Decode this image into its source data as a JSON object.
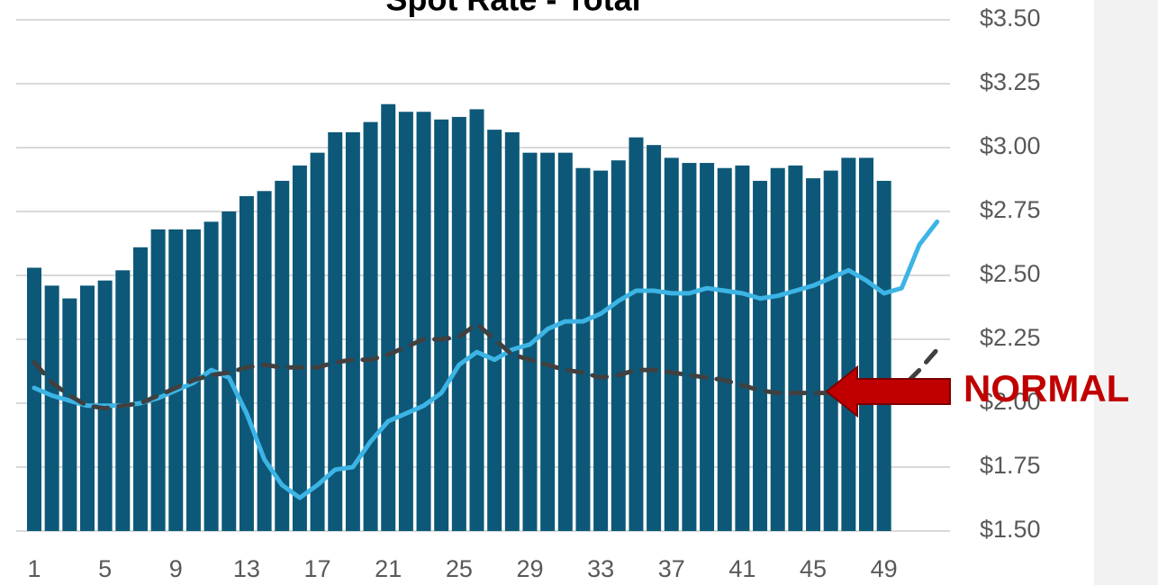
{
  "chart_data": {
    "type": "bar",
    "title": "Spot Rate - Total",
    "annotation": "NORMAL",
    "categories": [
      "1",
      null,
      null,
      null,
      "5",
      null,
      null,
      null,
      "9",
      null,
      null,
      null,
      "13",
      null,
      null,
      null,
      "17",
      null,
      null,
      null,
      "21",
      null,
      null,
      null,
      "25",
      null,
      null,
      null,
      "29",
      null,
      null,
      null,
      "33",
      null,
      null,
      null,
      "37",
      null,
      null,
      null,
      "41",
      null,
      null,
      null,
      "45",
      null,
      null,
      null,
      "49",
      null,
      null,
      null
    ],
    "series": [
      {
        "type": "bar",
        "color": "#0d5878",
        "values": [
          2.53,
          2.46,
          2.41,
          2.46,
          2.48,
          2.52,
          2.61,
          2.68,
          2.68,
          2.68,
          2.71,
          2.75,
          2.81,
          2.83,
          2.87,
          2.93,
          2.98,
          3.06,
          3.06,
          3.1,
          3.17,
          3.14,
          3.14,
          3.11,
          3.12,
          3.15,
          3.07,
          3.06,
          2.98,
          2.98,
          2.98,
          2.92,
          2.91,
          2.95,
          3.04,
          3.01,
          2.96,
          2.94,
          2.94,
          2.92,
          2.93,
          2.87,
          2.92,
          2.93,
          2.88,
          2.91,
          2.96,
          2.96,
          2.87,
          null,
          null,
          null
        ]
      },
      {
        "type": "line",
        "color": "#3cb4e5",
        "dashed": false,
        "values": [
          2.06,
          2.03,
          2.01,
          1.99,
          1.99,
          1.99,
          2.0,
          2.02,
          2.05,
          2.08,
          2.13,
          2.1,
          1.96,
          1.78,
          1.68,
          1.63,
          1.68,
          1.74,
          1.75,
          1.85,
          1.93,
          1.96,
          1.99,
          2.04,
          2.15,
          2.2,
          2.17,
          2.21,
          2.23,
          2.29,
          2.32,
          2.32,
          2.35,
          2.4,
          2.44,
          2.44,
          2.43,
          2.43,
          2.45,
          2.44,
          2.43,
          2.41,
          2.42,
          2.44,
          2.46,
          2.49,
          2.52,
          2.48,
          2.43,
          2.45,
          2.62,
          2.71
        ]
      },
      {
        "type": "line",
        "color": "#404040",
        "dashed": true,
        "values": [
          2.16,
          2.08,
          2.03,
          1.99,
          1.98,
          1.99,
          2.0,
          2.03,
          2.06,
          2.09,
          2.11,
          2.12,
          2.14,
          2.15,
          2.14,
          2.14,
          2.14,
          2.16,
          2.17,
          2.17,
          2.19,
          2.22,
          2.25,
          2.25,
          2.26,
          2.31,
          2.25,
          2.19,
          2.17,
          2.15,
          2.13,
          2.12,
          2.1,
          2.11,
          2.13,
          2.13,
          2.12,
          2.11,
          2.1,
          2.09,
          2.07,
          2.05,
          2.04,
          2.04,
          2.04,
          2.04,
          2.03,
          2.02,
          2.01,
          2.06,
          2.13,
          2.21
        ]
      }
    ],
    "ylim": [
      1.5,
      3.5
    ],
    "yticks": [
      {
        "value": 1.5,
        "label": "$1.50"
      },
      {
        "value": 1.75,
        "label": "$1.75"
      },
      {
        "value": 2.0,
        "label": "$2.00"
      },
      {
        "value": 2.25,
        "label": "$2.25"
      },
      {
        "value": 2.5,
        "label": "$2.50"
      },
      {
        "value": 2.75,
        "label": "$2.75"
      },
      {
        "value": 3.0,
        "label": "$3.00"
      },
      {
        "value": 3.25,
        "label": "$3.25"
      },
      {
        "value": 3.5,
        "label": "$3.50"
      }
    ],
    "grid": true,
    "annotation_color": "#c00000"
  }
}
